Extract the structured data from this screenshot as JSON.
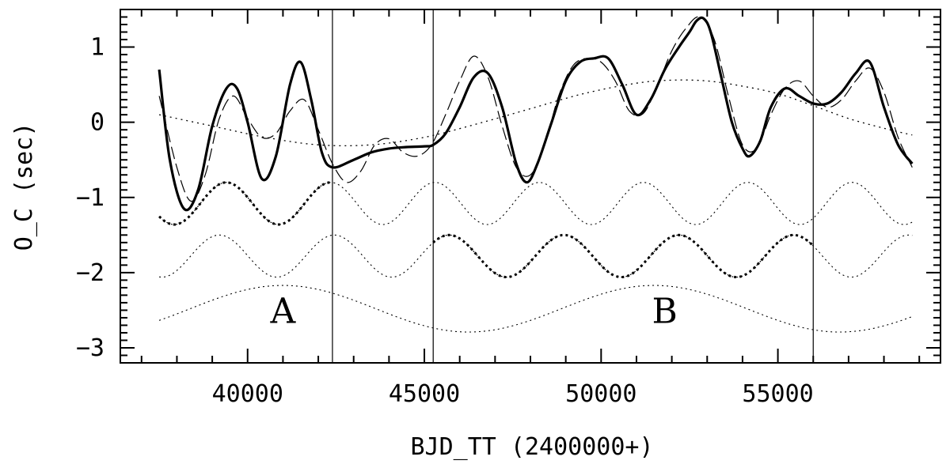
{
  "chart_data": {
    "type": "line",
    "xlabel": "BJD_TT (2400000+)",
    "ylabel": "O_C (sec)",
    "xlim": [
      36400,
      59600
    ],
    "ylim": [
      -3.2,
      1.5
    ],
    "x_ticks": [
      40000,
      45000,
      50000,
      55000
    ],
    "x_tick_labels": [
      "40000",
      "45000",
      "50000",
      "55000"
    ],
    "y_ticks": [
      1,
      0,
      -1,
      -2,
      -3
    ],
    "y_tick_labels": [
      "1",
      "0",
      "−1",
      "−2",
      "−3"
    ],
    "vertical_lines_x": [
      42400,
      45250,
      56000
    ],
    "region_labels": [
      {
        "text": "A",
        "x": 41000,
        "y": -2.5
      },
      {
        "text": "B",
        "x": 51800,
        "y": -2.5
      }
    ],
    "grid": false,
    "series": [
      {
        "style": "solid-thick",
        "x": [
          37500,
          37800,
          38200,
          38600,
          39000,
          39400,
          39700,
          40000,
          40400,
          40800,
          41200,
          41500,
          41800,
          42100,
          42400,
          43000,
          43500,
          44000,
          44500,
          45000,
          45250,
          45600,
          46000,
          46400,
          46800,
          47200,
          47600,
          47900,
          48200,
          48600,
          49000,
          49400,
          49800,
          50200,
          50600,
          51000,
          51400,
          51800,
          52200,
          52500,
          52700,
          52900,
          53100,
          53400,
          53700,
          54000,
          54200,
          54500,
          54800,
          55200,
          55600,
          56000,
          56400,
          56800,
          57200,
          57600,
          58000,
          58400,
          58800
        ],
        "y": [
          0.7,
          -0.5,
          -1.15,
          -0.9,
          -0.05,
          0.45,
          0.45,
          0.0,
          -0.75,
          -0.45,
          0.5,
          0.8,
          0.3,
          -0.4,
          -0.6,
          -0.5,
          -0.4,
          -0.35,
          -0.33,
          -0.32,
          -0.3,
          -0.15,
          0.2,
          0.6,
          0.65,
          0.2,
          -0.55,
          -0.8,
          -0.55,
          0.0,
          0.55,
          0.8,
          0.85,
          0.85,
          0.5,
          0.1,
          0.3,
          0.7,
          1.0,
          1.2,
          1.35,
          1.38,
          1.2,
          0.6,
          0.0,
          -0.35,
          -0.45,
          -0.25,
          0.2,
          0.45,
          0.35,
          0.25,
          0.25,
          0.4,
          0.65,
          0.8,
          0.2,
          -0.3,
          -0.55
        ]
      },
      {
        "style": "long-dash",
        "x": [
          37500,
          38000,
          38400,
          38800,
          39200,
          39600,
          40000,
          40400,
          40800,
          41200,
          41600,
          42000,
          42400,
          42800,
          43200,
          43600,
          44000,
          44400,
          44800,
          45200,
          45600,
          46000,
          46400,
          46800,
          47200,
          47600,
          48000,
          48400,
          48800,
          49200,
          49600,
          50000,
          50400,
          50800,
          51200,
          51600,
          52000,
          52400,
          52800,
          53200,
          53600,
          54000,
          54400,
          54800,
          55200,
          55600,
          56000,
          56400,
          56800,
          57200,
          57600,
          58000,
          58400,
          58800
        ],
        "y": [
          0.35,
          -0.6,
          -1.05,
          -0.7,
          0.05,
          0.35,
          0.05,
          -0.2,
          -0.15,
          0.15,
          0.3,
          -0.1,
          -0.55,
          -0.8,
          -0.65,
          -0.3,
          -0.22,
          -0.4,
          -0.45,
          -0.3,
          0.1,
          0.55,
          0.88,
          0.6,
          -0.05,
          -0.6,
          -0.7,
          -0.3,
          0.35,
          0.75,
          0.85,
          0.8,
          0.55,
          0.15,
          0.12,
          0.5,
          0.95,
          1.25,
          1.4,
          1.1,
          0.35,
          -0.3,
          -0.35,
          0.1,
          0.45,
          0.55,
          0.35,
          0.2,
          0.3,
          0.55,
          0.72,
          0.4,
          -0.2,
          -0.6
        ]
      },
      {
        "style": "dotted",
        "x": [
          37500,
          39000,
          40500,
          42000,
          43500,
          45000,
          46500,
          48000,
          49500,
          51000,
          52000,
          53000,
          54000,
          55000,
          56000,
          57000,
          58000,
          58800
        ],
        "y": [
          0.1,
          -0.05,
          -0.2,
          -0.3,
          -0.3,
          -0.2,
          -0.02,
          0.18,
          0.38,
          0.52,
          0.56,
          0.55,
          0.48,
          0.38,
          0.22,
          0.05,
          -0.08,
          -0.17
        ]
      },
      {
        "style": "dotted-sine",
        "name_hint": "component1",
        "center": -1.08,
        "amplitude": 0.28,
        "period": 2950,
        "peak_x": 39400,
        "bold_ranges": [
          [
            37500,
            42400
          ]
        ]
      },
      {
        "style": "dotted-sine",
        "name_hint": "component2",
        "center": -1.78,
        "amplitude": 0.28,
        "period": 3250,
        "peak_x": 42450,
        "bold_ranges": [
          [
            45250,
            56000
          ]
        ]
      },
      {
        "style": "dotted-sine",
        "name_hint": "component3",
        "center": -2.48,
        "amplitude": 0.31,
        "period": 10500,
        "peak_x": 41000,
        "bold_ranges": []
      }
    ]
  }
}
